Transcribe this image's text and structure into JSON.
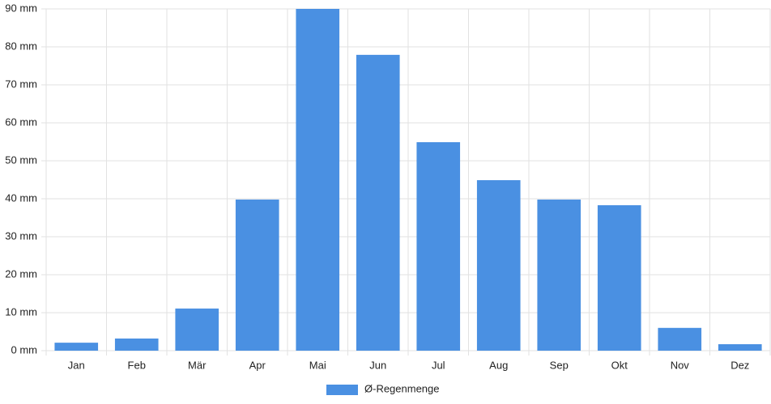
{
  "chart_data": {
    "type": "bar",
    "categories": [
      "Jan",
      "Feb",
      "Mär",
      "Apr",
      "Mai",
      "Jun",
      "Jul",
      "Aug",
      "Sep",
      "Okt",
      "Nov",
      "Dez"
    ],
    "series": [
      {
        "name": "Ø-Regenmenge",
        "color": "#4a90e2",
        "values": [
          2.1,
          3.2,
          11.1,
          39.8,
          90,
          77.9,
          54.9,
          44.9,
          39.8,
          38.3,
          6.0,
          1.7
        ]
      }
    ],
    "ylim": [
      0,
      90
    ],
    "yticks": [
      {
        "value": 0,
        "label": "0 mm"
      },
      {
        "value": 10,
        "label": "10 mm"
      },
      {
        "value": 20,
        "label": "20 mm"
      },
      {
        "value": 30,
        "label": "30 mm"
      },
      {
        "value": 40,
        "label": "40 mm"
      },
      {
        "value": 50,
        "label": "50 mm"
      },
      {
        "value": 60,
        "label": "60 mm"
      },
      {
        "value": 70,
        "label": "70 mm"
      },
      {
        "value": 80,
        "label": "80 mm"
      },
      {
        "value": 90,
        "label": "90 mm"
      }
    ],
    "grid": true,
    "legend": "bottom"
  }
}
